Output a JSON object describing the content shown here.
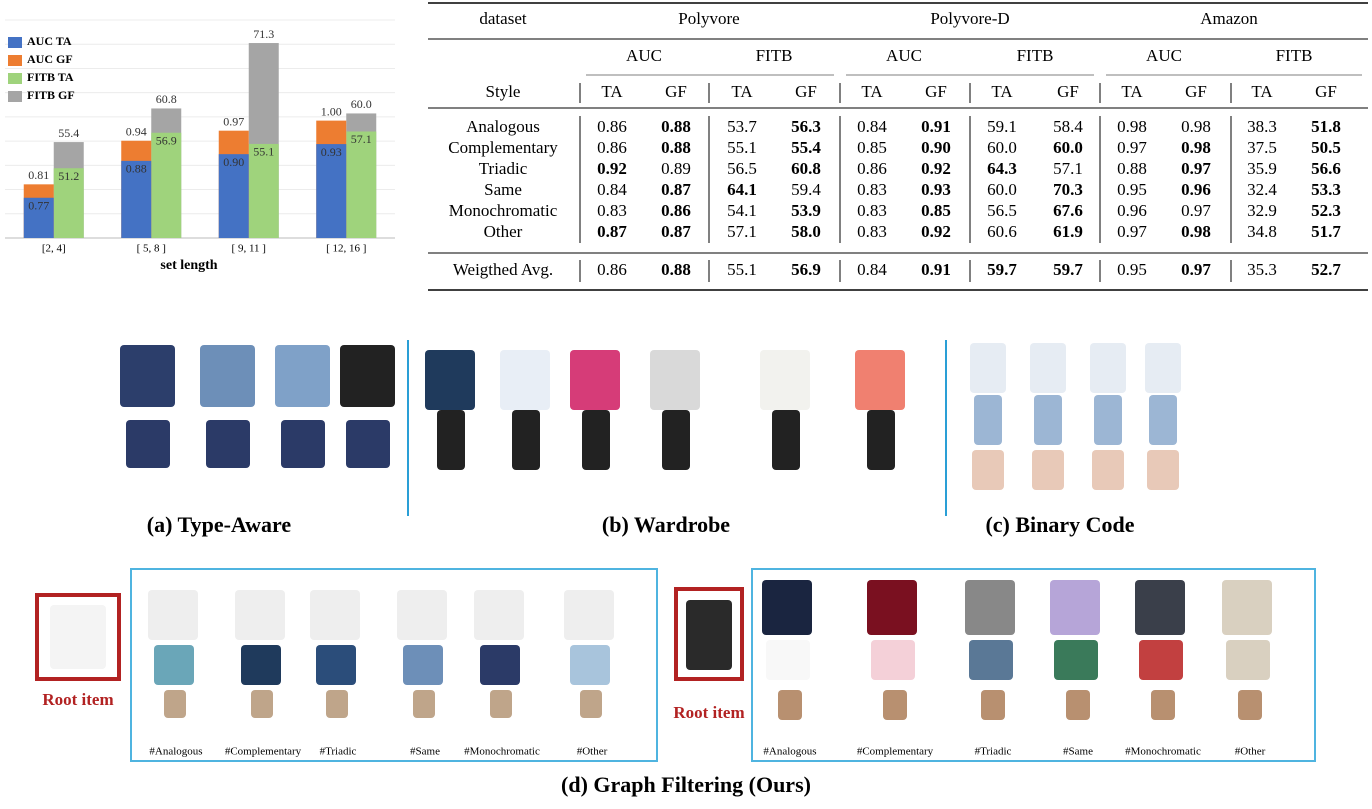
{
  "chart_data": {
    "type": "bar",
    "x_label": "set length",
    "categories": [
      "[2, 4]",
      "[ 5, 8 ]",
      "[ 9, 11 ]",
      "[ 12, 16 ]"
    ],
    "series": [
      {
        "name": "AUC TA",
        "color": "#4472c4",
        "values": [
          0.77,
          0.88,
          0.9,
          0.93
        ],
        "value_labels": [
          "0.77",
          "0.88",
          "0.90",
          "0.93"
        ]
      },
      {
        "name": "AUC GF",
        "color": "#ed7d31",
        "values": [
          0.81,
          0.94,
          0.97,
          1.0
        ],
        "value_labels": [
          "0.81",
          "0.94",
          "0.97",
          "1.00"
        ]
      },
      {
        "name": "FITB TA",
        "color": "#9fd37c",
        "axis": "y2",
        "values": [
          51.2,
          56.9,
          55.1,
          57.1
        ],
        "value_labels": [
          "51.2",
          "56.9",
          "55.1",
          "57.1"
        ]
      },
      {
        "name": "FITB GF",
        "color": "#a5a5a5",
        "axis": "y2",
        "values": [
          55.4,
          60.8,
          71.3,
          60.0
        ],
        "value_labels": [
          "55.4",
          "60.8",
          "71.3",
          "60.0"
        ]
      }
    ],
    "ylim": [
      0.65,
      1.3
    ],
    "y2lim": [
      40,
      75
    ],
    "legend": "upper left",
    "grid": true
  },
  "table": {
    "header": {
      "first": "dataset",
      "groups": [
        "Polyvore",
        "Polyvore-D",
        "Amazon"
      ],
      "metrics": [
        "AUC",
        "FITB",
        "AUC",
        "FITB",
        "AUC",
        "FITB"
      ],
      "style": "Style",
      "methods": [
        "TA",
        "GF",
        "TA",
        "GF",
        "TA",
        "GF",
        "TA",
        "GF",
        "TA",
        "GF",
        "TA",
        "GF"
      ]
    },
    "rows": [
      {
        "style": "Analogous",
        "values": [
          "0.86",
          "0.88",
          "53.7",
          "56.3",
          "0.84",
          "0.91",
          "59.1",
          "58.4",
          "0.98",
          "0.98",
          "38.3",
          "51.8"
        ],
        "bold": [
          1,
          3,
          5,
          11
        ]
      },
      {
        "style": "Complementary",
        "values": [
          "0.86",
          "0.88",
          "55.1",
          "55.4",
          "0.85",
          "0.90",
          "60.0",
          "60.0",
          "0.97",
          "0.98",
          "37.5",
          "50.5"
        ],
        "bold": [
          1,
          3,
          5,
          7,
          9,
          11
        ]
      },
      {
        "style": "Triadic",
        "values": [
          "0.92",
          "0.89",
          "56.5",
          "60.8",
          "0.86",
          "0.92",
          "64.3",
          "57.1",
          "0.88",
          "0.97",
          "35.9",
          "56.6"
        ],
        "bold": [
          0,
          3,
          5,
          6,
          9,
          11
        ]
      },
      {
        "style": "Same",
        "values": [
          "0.84",
          "0.87",
          "64.1",
          "59.4",
          "0.83",
          "0.93",
          "60.0",
          "70.3",
          "0.95",
          "0.96",
          "32.4",
          "53.3"
        ],
        "bold": [
          1,
          2,
          5,
          7,
          9,
          11
        ]
      },
      {
        "style": "Monochromatic",
        "values": [
          "0.83",
          "0.86",
          "54.1",
          "53.9",
          "0.83",
          "0.85",
          "56.5",
          "67.6",
          "0.96",
          "0.97",
          "32.9",
          "52.3"
        ],
        "bold": [
          1,
          3,
          5,
          7,
          11
        ]
      },
      {
        "style": "Other",
        "values": [
          "0.87",
          "0.87",
          "57.1",
          "58.0",
          "0.83",
          "0.92",
          "60.6",
          "61.9",
          "0.97",
          "0.98",
          "34.8",
          "51.7"
        ],
        "bold": [
          0,
          1,
          3,
          5,
          7,
          9,
          11
        ]
      }
    ],
    "summary": {
      "style": "Weigthed Avg.",
      "values": [
        "0.86",
        "0.88",
        "55.1",
        "56.9",
        "0.84",
        "0.91",
        "59.7",
        "59.7",
        "0.95",
        "0.97",
        "35.3",
        "52.7"
      ],
      "bold": [
        1,
        3,
        5,
        6,
        7,
        9,
        11
      ]
    }
  },
  "figures": {
    "captions": [
      "(a) Type-Aware",
      "(b) Wardrobe",
      "(c) Binary Code"
    ],
    "graph_filtering": {
      "caption": "(d) Graph Filtering (Ours)",
      "root_label": "Root item",
      "tags": [
        "#Analogous",
        "#Complementary",
        "#Triadic",
        "#Same",
        "#Monochromatic",
        "#Other"
      ]
    }
  }
}
